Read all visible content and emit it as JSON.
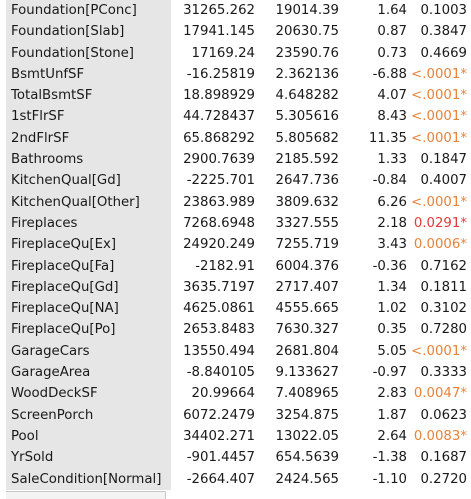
{
  "colors": {
    "term_background": "#e6e6e6",
    "significant_orange": "#e8823a",
    "significant_red": "#e03a3a",
    "text": "#1a1a1a"
  },
  "rows": [
    {
      "term": "Foundation[PConc]",
      "estimate": "31265.262",
      "std_error": "19014.39",
      "t_ratio": "1.64",
      "p_value": "0.1003",
      "sig": ""
    },
    {
      "term": "Foundation[Slab]",
      "estimate": "17941.145",
      "std_error": "20630.75",
      "t_ratio": "0.87",
      "p_value": "0.3847",
      "sig": ""
    },
    {
      "term": "Foundation[Stone]",
      "estimate": "17169.24",
      "std_error": "23590.76",
      "t_ratio": "0.73",
      "p_value": "0.4669",
      "sig": ""
    },
    {
      "term": "BsmtUnfSF",
      "estimate": "-16.25819",
      "std_error": "2.362136",
      "t_ratio": "-6.88",
      "p_value": "<.0001*",
      "sig": "orange"
    },
    {
      "term": "TotalBsmtSF",
      "estimate": "18.898929",
      "std_error": "4.648282",
      "t_ratio": "4.07",
      "p_value": "<.0001*",
      "sig": "orange"
    },
    {
      "term": "1stFlrSF",
      "estimate": "44.728437",
      "std_error": "5.305616",
      "t_ratio": "8.43",
      "p_value": "<.0001*",
      "sig": "orange"
    },
    {
      "term": "2ndFlrSF",
      "estimate": "65.868292",
      "std_error": "5.805682",
      "t_ratio": "11.35",
      "p_value": "<.0001*",
      "sig": "orange"
    },
    {
      "term": "Bathrooms",
      "estimate": "2900.7639",
      "std_error": "2185.592",
      "t_ratio": "1.33",
      "p_value": "0.1847",
      "sig": ""
    },
    {
      "term": "KitchenQual[Gd]",
      "estimate": "-2225.701",
      "std_error": "2647.736",
      "t_ratio": "-0.84",
      "p_value": "0.4007",
      "sig": ""
    },
    {
      "term": "KitchenQual[Other]",
      "estimate": "23863.989",
      "std_error": "3809.632",
      "t_ratio": "6.26",
      "p_value": "<.0001*",
      "sig": "orange"
    },
    {
      "term": "Fireplaces",
      "estimate": "7268.6948",
      "std_error": "3327.555",
      "t_ratio": "2.18",
      "p_value": "0.0291*",
      "sig": "red"
    },
    {
      "term": "FireplaceQu[Ex]",
      "estimate": "24920.249",
      "std_error": "7255.719",
      "t_ratio": "3.43",
      "p_value": "0.0006*",
      "sig": "orange"
    },
    {
      "term": "FireplaceQu[Fa]",
      "estimate": "-2182.91",
      "std_error": "6004.376",
      "t_ratio": "-0.36",
      "p_value": "0.7162",
      "sig": ""
    },
    {
      "term": "FireplaceQu[Gd]",
      "estimate": "3635.7197",
      "std_error": "2717.407",
      "t_ratio": "1.34",
      "p_value": "0.1811",
      "sig": ""
    },
    {
      "term": "FireplaceQu[NA]",
      "estimate": "4625.0861",
      "std_error": "4555.665",
      "t_ratio": "1.02",
      "p_value": "0.3102",
      "sig": ""
    },
    {
      "term": "FireplaceQu[Po]",
      "estimate": "2653.8483",
      "std_error": "7630.327",
      "t_ratio": "0.35",
      "p_value": "0.7280",
      "sig": ""
    },
    {
      "term": "GarageCars",
      "estimate": "13550.494",
      "std_error": "2681.804",
      "t_ratio": "5.05",
      "p_value": "<.0001*",
      "sig": "orange"
    },
    {
      "term": "GarageArea",
      "estimate": "-8.840105",
      "std_error": "9.133627",
      "t_ratio": "-0.97",
      "p_value": "0.3333",
      "sig": ""
    },
    {
      "term": "WoodDeckSF",
      "estimate": "20.99664",
      "std_error": "7.408965",
      "t_ratio": "2.83",
      "p_value": "0.0047*",
      "sig": "orange"
    },
    {
      "term": "ScreenPorch",
      "estimate": "6072.2479",
      "std_error": "3254.875",
      "t_ratio": "1.87",
      "p_value": "0.0623",
      "sig": ""
    },
    {
      "term": "Pool",
      "estimate": "34402.271",
      "std_error": "13022.05",
      "t_ratio": "2.64",
      "p_value": "0.0083*",
      "sig": "orange"
    },
    {
      "term": "YrSold",
      "estimate": "-901.4457",
      "std_error": "654.5639",
      "t_ratio": "-1.38",
      "p_value": "0.1687",
      "sig": ""
    },
    {
      "term": "SaleCondition[Normal]",
      "estimate": "-2664.407",
      "std_error": "2424.565",
      "t_ratio": "-1.10",
      "p_value": "0.2720",
      "sig": ""
    }
  ]
}
